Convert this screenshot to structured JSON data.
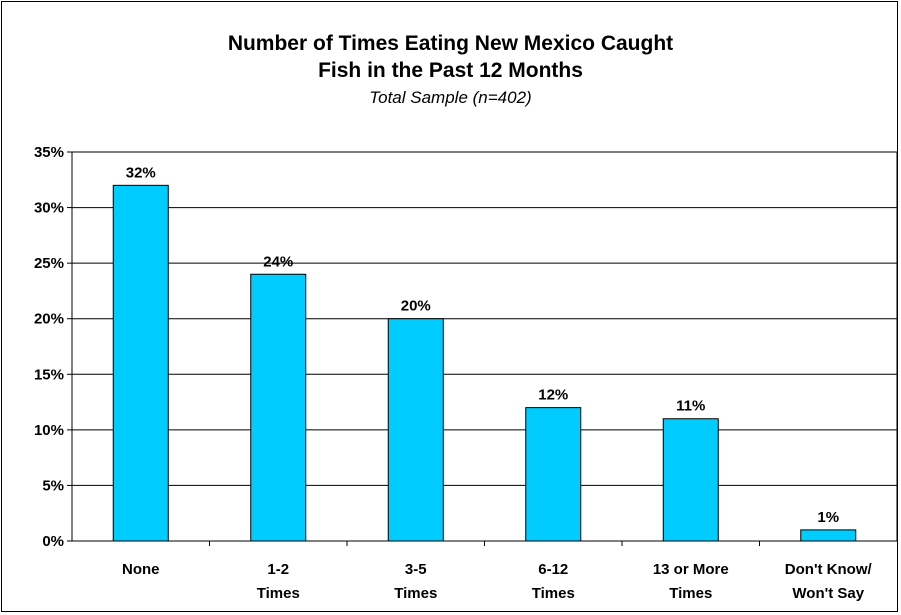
{
  "chart_data": {
    "type": "bar",
    "title_line1": "Number of Times Eating New Mexico Caught",
    "title_line2": "Fish in the Past 12 Months",
    "subtitle": "Total Sample (n=402)",
    "categories": [
      [
        "None"
      ],
      [
        "1-2",
        "Times"
      ],
      [
        "3-5",
        "Times"
      ],
      [
        "6-12",
        "Times"
      ],
      [
        "13 or More",
        "Times"
      ],
      [
        "Don't Know/",
        "Won't Say"
      ]
    ],
    "values": [
      32,
      24,
      20,
      12,
      11,
      1
    ],
    "data_labels": [
      "32%",
      "24%",
      "20%",
      "12%",
      "11%",
      "1%"
    ],
    "y_ticks": [
      "0%",
      "5%",
      "10%",
      "15%",
      "20%",
      "25%",
      "30%",
      "35%"
    ],
    "ylim": [
      0,
      35
    ],
    "grid": true,
    "bar_color": "#00CCFF",
    "legend": "none"
  }
}
